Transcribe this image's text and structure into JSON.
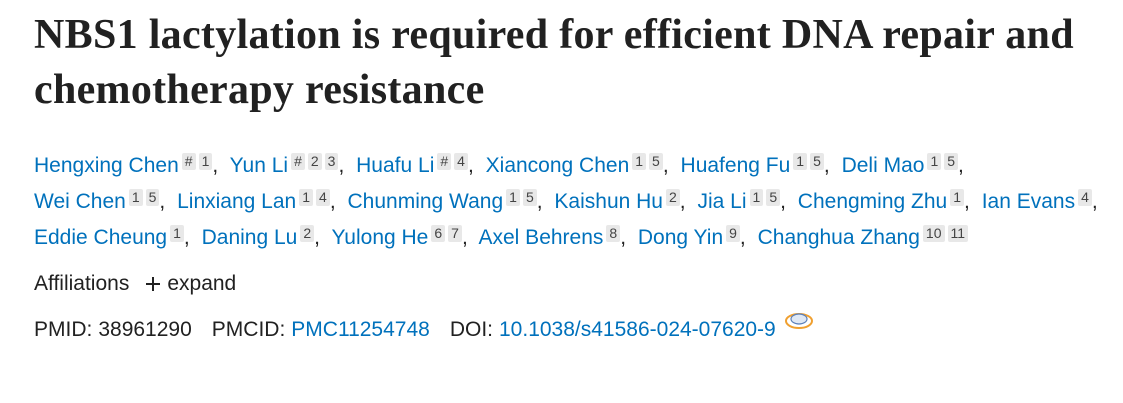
{
  "title": "NBS1 lactylation is required for efficient DNA repair and chemotherapy resistance",
  "author_separator": ",",
  "authors": [
    {
      "name": "Hengxing Chen",
      "sups": [
        "#",
        "1"
      ]
    },
    {
      "name": "Yun Li",
      "sups": [
        "#",
        "2",
        "3"
      ]
    },
    {
      "name": "Huafu Li",
      "sups": [
        "#",
        "4"
      ]
    },
    {
      "name": "Xiancong Chen",
      "sups": [
        "1",
        "5"
      ]
    },
    {
      "name": "Huafeng Fu",
      "sups": [
        "1",
        "5"
      ]
    },
    {
      "name": "Deli Mao",
      "sups": [
        "1",
        "5"
      ]
    },
    {
      "name": "Wei Chen",
      "sups": [
        "1",
        "5"
      ]
    },
    {
      "name": "Linxiang Lan",
      "sups": [
        "1",
        "4"
      ]
    },
    {
      "name": "Chunming Wang",
      "sups": [
        "1",
        "5"
      ]
    },
    {
      "name": "Kaishun Hu",
      "sups": [
        "2"
      ]
    },
    {
      "name": "Jia Li",
      "sups": [
        "1",
        "5"
      ]
    },
    {
      "name": "Chengming Zhu",
      "sups": [
        "1"
      ]
    },
    {
      "name": "Ian Evans",
      "sups": [
        "4"
      ]
    },
    {
      "name": "Eddie Cheung",
      "sups": [
        "1"
      ]
    },
    {
      "name": "Daning Lu",
      "sups": [
        "2"
      ]
    },
    {
      "name": "Yulong He",
      "sups": [
        "6",
        "7"
      ]
    },
    {
      "name": "Axel Behrens",
      "sups": [
        "8"
      ]
    },
    {
      "name": "Dong Yin",
      "sups": [
        "9"
      ]
    },
    {
      "name": "Changhua Zhang",
      "sups": [
        "10",
        "11"
      ]
    }
  ],
  "affiliations": {
    "label": "Affiliations",
    "expand": "expand"
  },
  "ids": [
    {
      "label": "PMID:",
      "value": "38961290",
      "link": false
    },
    {
      "label": "PMCID:",
      "value": "PMC11254748",
      "link": true
    },
    {
      "label": "DOI:",
      "value": "10.1038/s41586-024-07620-9",
      "link": true
    }
  ]
}
